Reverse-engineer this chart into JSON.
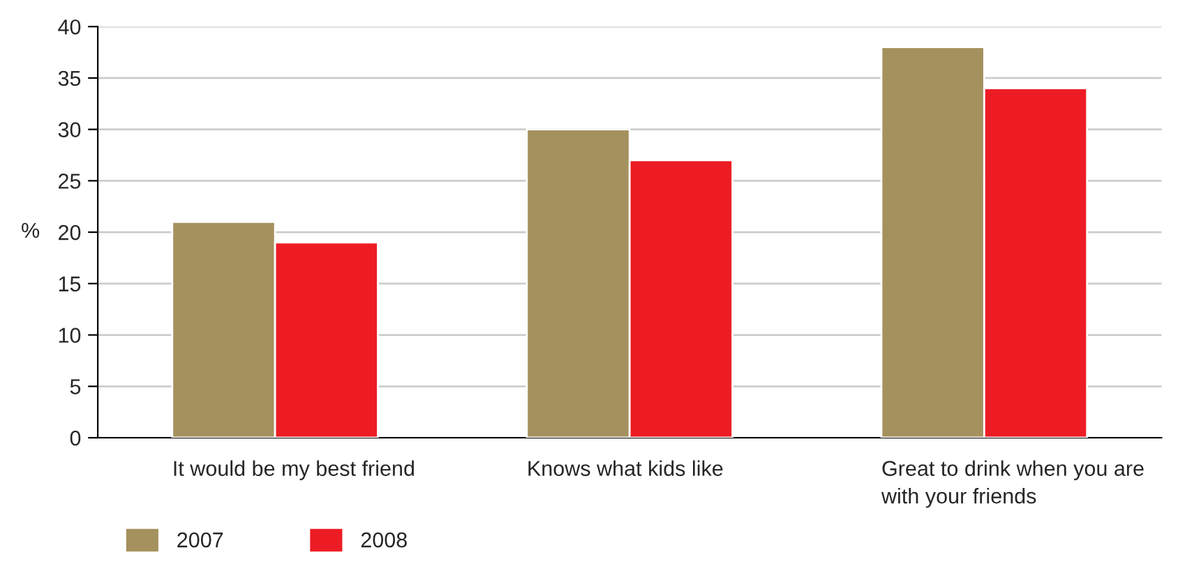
{
  "chart_data": {
    "type": "bar",
    "ylabel": "%",
    "categories": [
      "It would be my best friend",
      "Knows what kids like",
      "Great to drink when you are\nwith your friends"
    ],
    "series": [
      {
        "name": "2007",
        "color": "#a5915e",
        "values": [
          21,
          30,
          38
        ]
      },
      {
        "name": "2008",
        "color": "#ed1c24",
        "values": [
          19,
          27,
          34
        ]
      }
    ],
    "ylim": [
      0,
      40
    ],
    "yticks": [
      0,
      5,
      10,
      15,
      20,
      25,
      30,
      35,
      40
    ],
    "grid": "y",
    "legend": "bottom left"
  }
}
